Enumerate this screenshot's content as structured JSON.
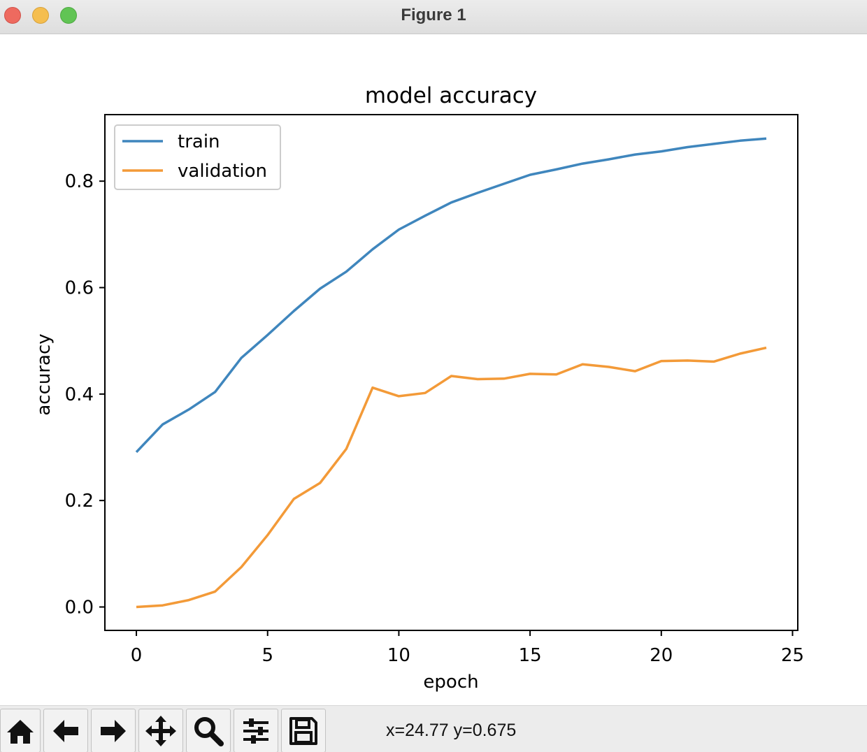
{
  "window": {
    "title": "Figure 1"
  },
  "toolbar": {
    "buttons": [
      {
        "icon": "home-icon"
      },
      {
        "icon": "back-arrow-icon"
      },
      {
        "icon": "forward-arrow-icon"
      },
      {
        "icon": "pan-move-icon"
      },
      {
        "icon": "zoom-magnifier-icon"
      },
      {
        "icon": "configure-subplots-icon"
      },
      {
        "icon": "save-floppy-icon"
      }
    ],
    "coordinates": "x=24.77 y=0.675"
  },
  "chart_data": {
    "type": "line",
    "title": "model accuracy",
    "xlabel": "epoch",
    "ylabel": "accuracy",
    "xlim": [
      -1.2,
      25.2
    ],
    "ylim": [
      -0.044,
      0.925
    ],
    "xticks": [
      0,
      5,
      10,
      15,
      20,
      25
    ],
    "xtick_labels": [
      "0",
      "5",
      "10",
      "15",
      "20",
      "25"
    ],
    "yticks": [
      0.0,
      0.2,
      0.4,
      0.6,
      0.8
    ],
    "ytick_labels": [
      "0.0",
      "0.2",
      "0.4",
      "0.6",
      "0.8"
    ],
    "grid": false,
    "legend": "upper left",
    "x": [
      0,
      1,
      2,
      3,
      4,
      5,
      6,
      7,
      8,
      9,
      10,
      11,
      12,
      13,
      14,
      15,
      16,
      17,
      18,
      19,
      20,
      21,
      22,
      23,
      24
    ],
    "series": [
      {
        "name": "train",
        "color": "#3f86bd",
        "values": [
          0.291,
          0.343,
          0.371,
          0.404,
          0.468,
          0.511,
          0.556,
          0.598,
          0.63,
          0.672,
          0.709,
          0.735,
          0.76,
          0.778,
          0.795,
          0.812,
          0.822,
          0.833,
          0.841,
          0.85,
          0.856,
          0.864,
          0.87,
          0.876,
          0.88
        ]
      },
      {
        "name": "validation",
        "color": "#f39a38",
        "values": [
          0.0,
          0.003,
          0.013,
          0.029,
          0.075,
          0.135,
          0.203,
          0.233,
          0.297,
          0.412,
          0.396,
          0.402,
          0.434,
          0.428,
          0.429,
          0.438,
          0.437,
          0.456,
          0.451,
          0.443,
          0.462,
          0.463,
          0.461,
          0.476,
          0.487
        ]
      }
    ]
  }
}
